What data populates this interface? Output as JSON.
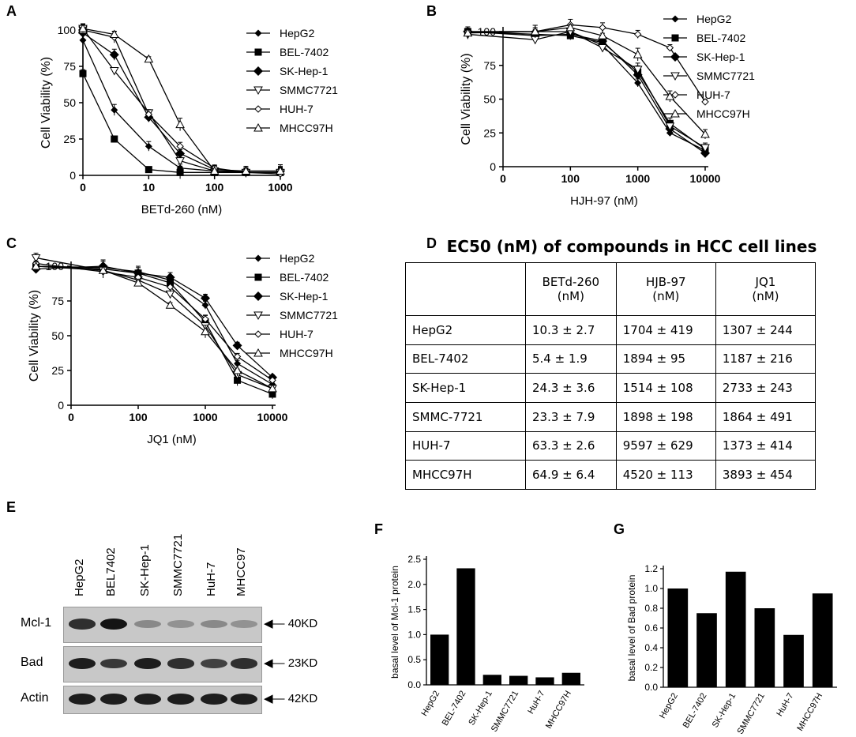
{
  "panels": {
    "A": {
      "label": "A"
    },
    "B": {
      "label": "B"
    },
    "C": {
      "label": "C"
    },
    "D": {
      "label": "D"
    },
    "E": {
      "label": "E"
    },
    "F": {
      "label": "F"
    },
    "G": {
      "label": "G"
    }
  },
  "chart_data": [
    {
      "id": "A",
      "type": "line",
      "xscale": "log",
      "xlabel": "BETd-260 (nM)",
      "ylabel": "Cell Viability (%)",
      "ylim": [
        0,
        100
      ],
      "yticks": [
        0,
        25,
        50,
        75,
        100
      ],
      "xtick_labels": [
        "0",
        "10",
        "100",
        "1000"
      ],
      "x": [
        0,
        1,
        3,
        10,
        30,
        100,
        300,
        1000
      ],
      "series": [
        {
          "name": "HepG2",
          "values": [
            100,
            93,
            45,
            20,
            5,
            3,
            2,
            2
          ]
        },
        {
          "name": "BEL-7402",
          "values": [
            100,
            70,
            25,
            4,
            2,
            2,
            2,
            2
          ]
        },
        {
          "name": "SK-Hep-1",
          "values": [
            100,
            98,
            83,
            40,
            15,
            4,
            3,
            3
          ]
        },
        {
          "name": "SMMC7721",
          "values": [
            100,
            101,
            72,
            43,
            10,
            3,
            2,
            2
          ]
        },
        {
          "name": "HUH-7",
          "values": [
            100,
            100,
            95,
            42,
            20,
            5,
            2,
            1
          ]
        },
        {
          "name": "MHCC97H",
          "values": [
            100,
            101,
            97,
            80,
            35,
            3,
            3,
            3
          ]
        }
      ]
    },
    {
      "id": "B",
      "type": "line",
      "xscale": "log",
      "xlabel": "HJH-97 (nM)",
      "ylabel": "Cell Viability (%)",
      "ylim": [
        0,
        100
      ],
      "yticks": [
        0,
        25,
        50,
        75,
        100
      ],
      "xtick_labels": [
        "0",
        "100",
        "1000",
        "10000"
      ],
      "x": [
        3,
        30,
        100,
        300,
        1000,
        3000,
        10000
      ],
      "series": [
        {
          "name": "HepG2",
          "values": [
            100,
            100,
            100,
            90,
            62,
            25,
            12
          ]
        },
        {
          "name": "BEL-7402",
          "values": [
            100,
            98,
            97,
            92,
            70,
            32,
            13
          ]
        },
        {
          "name": "SK-Hep-1",
          "values": [
            100,
            97,
            98,
            93,
            68,
            28,
            10
          ]
        },
        {
          "name": "SMMC7721",
          "values": [
            98,
            94,
            100,
            88,
            72,
            30,
            14
          ]
        },
        {
          "name": "HUH-7",
          "values": [
            100,
            100,
            105,
            103,
            98,
            88,
            48
          ]
        },
        {
          "name": "MHCC97H",
          "values": [
            99,
            100,
            103,
            97,
            83,
            52,
            24
          ]
        }
      ]
    },
    {
      "id": "C",
      "type": "line",
      "xscale": "log",
      "xlabel": "JQ1 (nM)",
      "ylabel": "Cell Viability (%)",
      "ylim": [
        0,
        100
      ],
      "yticks": [
        0,
        25,
        50,
        75,
        100
      ],
      "xtick_labels": [
        "0",
        "100",
        "1000",
        "10000"
      ],
      "x": [
        3,
        30,
        100,
        300,
        1000,
        3000,
        10000
      ],
      "series": [
        {
          "name": "HepG2",
          "values": [
            100,
            99,
            96,
            90,
            72,
            30,
            15
          ]
        },
        {
          "name": "BEL-7402",
          "values": [
            100,
            98,
            95,
            88,
            60,
            18,
            8
          ]
        },
        {
          "name": "SK-Hep-1",
          "values": [
            98,
            100,
            95,
            92,
            77,
            43,
            20
          ]
        },
        {
          "name": "SMMC7721",
          "values": [
            106,
            97,
            90,
            80,
            57,
            22,
            12
          ]
        },
        {
          "name": "HUH-7",
          "values": [
            102,
            96,
            92,
            85,
            62,
            35,
            18
          ]
        },
        {
          "name": "MHCC97H",
          "values": [
            100,
            97,
            88,
            72,
            53,
            25,
            12
          ]
        }
      ]
    },
    {
      "id": "F",
      "type": "bar",
      "ylabel": "basal level of Mcl-1 protein",
      "ylim": [
        0,
        2.5
      ],
      "yticks": [
        "0.0",
        "0.5",
        "1.0",
        "1.5",
        "2.0",
        "2.5"
      ],
      "categories": [
        "HepG2",
        "BEL-7402",
        "SK-Hep-1",
        "SMMC7721",
        "HuH-7",
        "MHCC97H"
      ],
      "values": [
        1.0,
        2.32,
        0.2,
        0.18,
        0.15,
        0.24
      ]
    },
    {
      "id": "G",
      "type": "bar",
      "ylabel": "basal level of Bad protein",
      "ylim": [
        0,
        1.2
      ],
      "yticks": [
        "0.0",
        "0.2",
        "0.4",
        "0.6",
        "0.8",
        "1.0",
        "1.2"
      ],
      "categories": [
        "HepG2",
        "BEL-7402",
        "SK-Hep-1",
        "SMMC7721",
        "HuH-7",
        "MHCC97H"
      ],
      "values": [
        1.0,
        0.75,
        1.17,
        0.8,
        0.53,
        0.95
      ]
    }
  ],
  "table": {
    "title": "EC50 (nM) of compounds  in HCC cell lines",
    "headers": [
      "",
      "BETd-260\n(nM)",
      "HJB-97\n(nM)",
      "JQ1\n(nM)"
    ],
    "rows": [
      [
        "HepG2",
        "10.3 ± 2.7",
        "1704 ± 419",
        "1307 ± 244"
      ],
      [
        "BEL-7402",
        "5.4 ± 1.9",
        "1894 ± 95",
        "1187 ± 216"
      ],
      [
        "SK-Hep-1",
        "24.3 ± 3.6",
        "1514 ± 108",
        "2733 ± 243"
      ],
      [
        "SMMC-7721",
        "23.3 ± 7.9",
        "1898 ± 198",
        "1864 ± 491"
      ],
      [
        "HUH-7",
        "63.3 ± 2.6",
        "9597 ± 629",
        "1373 ± 414"
      ],
      [
        "MHCC97H",
        "64.9 ± 6.4",
        "4520 ± 113",
        "3893 ± 454"
      ]
    ]
  },
  "blot": {
    "lanes": [
      "HepG2",
      "BEL7402",
      "SK-Hep-1",
      "SMMC7721",
      "HuH-7",
      "MHCC97"
    ],
    "rows": [
      {
        "label": "Mcl-1",
        "size": "40KD",
        "intensity": [
          0.85,
          1.0,
          0.35,
          0.3,
          0.35,
          0.3
        ]
      },
      {
        "label": "Bad",
        "size": "23KD",
        "intensity": [
          0.95,
          0.8,
          0.95,
          0.85,
          0.75,
          0.85
        ]
      },
      {
        "label": "Actin",
        "size": "42KD",
        "intensity": [
          0.95,
          0.95,
          0.95,
          0.95,
          0.95,
          0.95
        ]
      }
    ]
  }
}
